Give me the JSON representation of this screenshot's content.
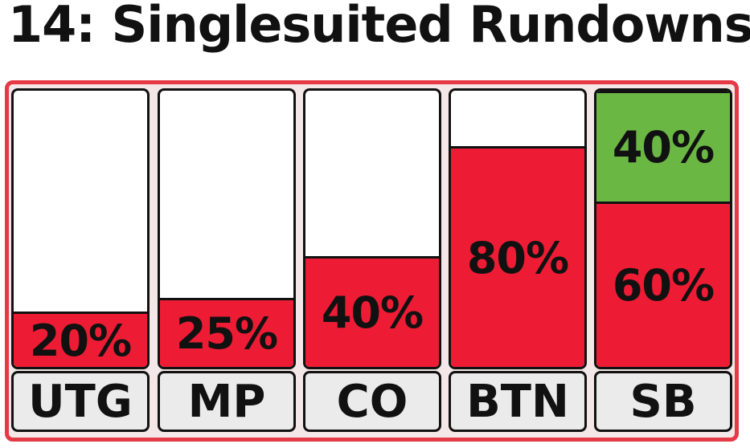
{
  "title": "14: Singlesuited Rundowns",
  "colors": {
    "red": "#ed1c34",
    "green": "#6ab744",
    "frame": "#e63946"
  },
  "chart_data": {
    "type": "bar",
    "stacked": true,
    "categories": [
      "UTG",
      "MP",
      "CO",
      "BTN",
      "SB"
    ],
    "ylim": [
      0,
      100
    ],
    "unit": "%",
    "series": [
      {
        "color": "red",
        "values": [
          20,
          25,
          40,
          80,
          60
        ],
        "labels": [
          "20%",
          "25%",
          "40%",
          "80%",
          "60%"
        ]
      },
      {
        "color": "green",
        "values": [
          0,
          0,
          0,
          0,
          40
        ],
        "labels": [
          "",
          "",
          "",
          "",
          "40%"
        ]
      }
    ]
  }
}
